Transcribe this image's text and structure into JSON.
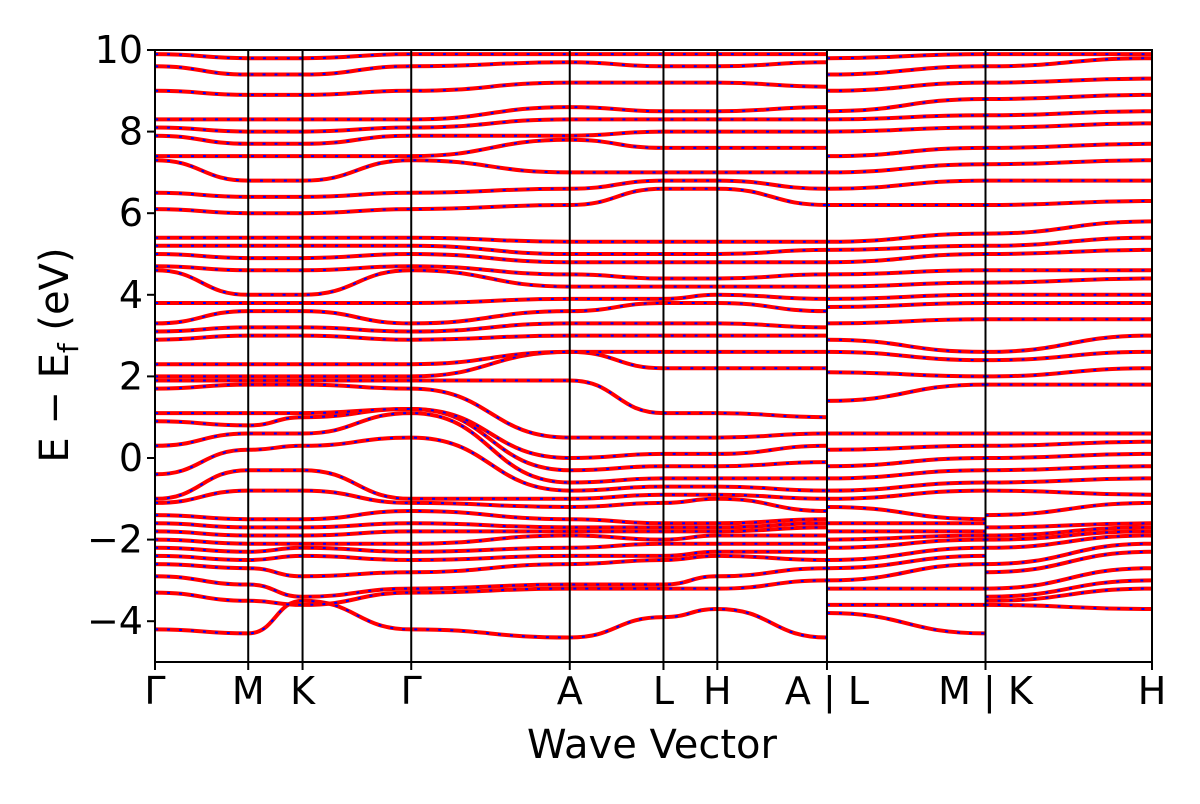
{
  "chart_data": {
    "type": "line",
    "title": "",
    "xlabel": "Wave Vector",
    "ylabel_main": "E − E",
    "ylabel_sub": "f",
    "ylabel_suffix": " (eV)",
    "ylim": [
      -5,
      10
    ],
    "yticks": [
      -4,
      -2,
      0,
      2,
      4,
      6,
      8,
      10
    ],
    "ytick_labels": [
      "−4",
      "−2",
      "0",
      "2",
      "4",
      "6",
      "8",
      "10"
    ],
    "x_path": {
      "segment_breaks": [
        0,
        0.0935,
        0.148,
        0.257,
        0.416,
        0.51,
        0.564,
        0.674,
        0.833,
        1.0
      ],
      "labels": [
        "Γ",
        "M",
        "K",
        "Γ",
        "A",
        "L",
        "H",
        "A | L",
        "M | K",
        "H"
      ]
    },
    "series_colors": {
      "primary": "#ff0000",
      "secondary": "#0000ff"
    },
    "series": [
      {
        "name": "",
        "style": "solid",
        "color": "#ff0000",
        "bands": [
          [
            -4.2,
            -4.3,
            -3.5,
            -4.2,
            -4.4,
            -3.9,
            -3.7,
            -4.4,
            -3.8,
            -4.3,
            -3.6,
            -3.7
          ],
          [
            -3.3,
            -3.5,
            -3.6,
            -3.3,
            -3.2,
            -3.2,
            -3.2,
            -3.0,
            -3.6,
            -3.6,
            -3.5,
            -3.2
          ],
          [
            -2.9,
            -3.1,
            -3.4,
            -3.2,
            -3.1,
            -3.1,
            -2.9,
            -2.7,
            -3.2,
            -3.2,
            -3.4,
            -3.0
          ],
          [
            -2.6,
            -2.7,
            -2.9,
            -2.8,
            -2.6,
            -2.5,
            -2.4,
            -2.5,
            -3.0,
            -2.6,
            -3.2,
            -2.7
          ],
          [
            -2.4,
            -2.5,
            -2.4,
            -2.5,
            -2.4,
            -2.4,
            -2.3,
            -2.3,
            -2.7,
            -2.4,
            -2.8,
            -2.3
          ],
          [
            -2.2,
            -2.3,
            -2.2,
            -2.3,
            -2.2,
            -2.1,
            -2.1,
            -2.1,
            -2.5,
            -2.2,
            -2.6,
            -2.1
          ],
          [
            -2.0,
            -2.1,
            -2.1,
            -2.1,
            -1.9,
            -2.0,
            -1.9,
            -1.9,
            -2.2,
            -2.0,
            -2.2,
            -1.9
          ],
          [
            -1.8,
            -1.9,
            -1.9,
            -1.8,
            -1.8,
            -1.8,
            -1.8,
            -1.7,
            -2.0,
            -1.9,
            -2.0,
            -1.8
          ],
          [
            -1.6,
            -1.7,
            -1.7,
            -1.6,
            -1.7,
            -1.7,
            -1.7,
            -1.6,
            -1.8,
            -1.8,
            -1.9,
            -1.7
          ],
          [
            -1.4,
            -1.5,
            -1.5,
            -1.3,
            -1.5,
            -1.6,
            -1.6,
            -1.5,
            -1.6,
            -1.6,
            -1.7,
            -1.6
          ],
          [
            -1.1,
            -0.8,
            -0.8,
            -1.1,
            -1.2,
            -1.1,
            -1.0,
            -1.3,
            -1.2,
            -1.5,
            -1.4,
            -1.1
          ],
          [
            -1.0,
            -0.3,
            -0.3,
            -1.0,
            -1.0,
            -0.9,
            -0.9,
            -1.0,
            -1.0,
            -0.8,
            -0.8,
            -0.9
          ],
          [
            -0.4,
            0.2,
            0.3,
            0.5,
            -0.8,
            -0.7,
            -0.7,
            -0.8,
            -0.8,
            -0.6,
            -0.6,
            -0.5
          ],
          [
            0.3,
            0.6,
            0.6,
            1.1,
            -0.6,
            -0.5,
            -0.5,
            -0.5,
            -0.5,
            -0.3,
            -0.3,
            -0.2
          ],
          [
            0.9,
            0.8,
            1.0,
            1.2,
            -0.3,
            -0.2,
            -0.2,
            -0.1,
            -0.2,
            0.0,
            0.0,
            0.1
          ],
          [
            1.1,
            1.1,
            1.1,
            1.2,
            0.0,
            0.1,
            0.1,
            0.3,
            0.2,
            0.3,
            0.3,
            0.4
          ],
          [
            1.7,
            1.8,
            1.8,
            1.7,
            0.5,
            0.5,
            0.5,
            0.6,
            0.6,
            0.6,
            0.6,
            0.6
          ],
          [
            1.9,
            1.9,
            1.9,
            1.9,
            1.9,
            1.1,
            1.1,
            1.0,
            1.4,
            1.8,
            1.8,
            1.8
          ],
          [
            2.0,
            2.0,
            2.0,
            2.0,
            2.6,
            2.2,
            2.2,
            2.2,
            2.1,
            2.0,
            2.0,
            2.2
          ],
          [
            2.3,
            2.3,
            2.3,
            2.3,
            2.6,
            2.6,
            2.6,
            2.6,
            2.6,
            2.4,
            2.4,
            2.6
          ],
          [
            2.9,
            3.0,
            3.0,
            2.9,
            3.0,
            3.0,
            3.0,
            3.0,
            2.9,
            2.6,
            2.6,
            3.0
          ],
          [
            3.1,
            3.2,
            3.2,
            3.1,
            3.3,
            3.3,
            3.3,
            3.2,
            3.3,
            3.4,
            3.4,
            3.4
          ],
          [
            3.3,
            3.6,
            3.6,
            3.3,
            3.6,
            3.8,
            3.8,
            3.6,
            3.7,
            3.8,
            3.8,
            3.8
          ],
          [
            3.8,
            3.8,
            3.8,
            3.8,
            3.9,
            3.9,
            4.0,
            3.9,
            3.9,
            4.0,
            4.0,
            4.0
          ],
          [
            4.6,
            4.0,
            4.0,
            4.6,
            4.2,
            4.2,
            4.2,
            4.2,
            4.2,
            4.3,
            4.3,
            4.4
          ],
          [
            4.7,
            4.6,
            4.6,
            4.7,
            4.5,
            4.4,
            4.4,
            4.5,
            4.5,
            4.6,
            4.6,
            4.6
          ],
          [
            5.0,
            4.9,
            4.9,
            5.0,
            4.8,
            4.8,
            4.8,
            4.8,
            4.8,
            5.0,
            5.0,
            5.1
          ],
          [
            5.2,
            5.2,
            5.2,
            5.2,
            5.0,
            5.0,
            5.0,
            5.1,
            5.1,
            5.2,
            5.2,
            5.4
          ],
          [
            5.4,
            5.4,
            5.4,
            5.4,
            5.3,
            5.3,
            5.3,
            5.3,
            5.3,
            5.5,
            5.5,
            5.8
          ],
          [
            6.1,
            6.0,
            6.0,
            6.1,
            6.2,
            6.6,
            6.6,
            6.2,
            6.2,
            6.2,
            6.2,
            6.3
          ],
          [
            6.5,
            6.4,
            6.4,
            6.5,
            6.6,
            6.8,
            6.8,
            6.6,
            6.6,
            6.8,
            6.8,
            6.8
          ],
          [
            7.3,
            6.8,
            6.8,
            7.3,
            7.0,
            7.0,
            7.0,
            7.0,
            7.0,
            7.2,
            7.2,
            7.3
          ],
          [
            7.4,
            7.4,
            7.4,
            7.4,
            7.8,
            7.6,
            7.6,
            7.6,
            7.4,
            7.6,
            7.6,
            7.7
          ],
          [
            7.9,
            7.7,
            7.7,
            7.9,
            7.9,
            8.0,
            8.0,
            8.0,
            8.0,
            8.1,
            8.1,
            8.2
          ],
          [
            8.1,
            8.0,
            8.0,
            8.1,
            8.3,
            8.3,
            8.3,
            8.3,
            8.3,
            8.4,
            8.4,
            8.5
          ],
          [
            8.3,
            8.3,
            8.3,
            8.3,
            8.6,
            8.5,
            8.5,
            8.6,
            8.5,
            8.8,
            8.8,
            8.9
          ],
          [
            9.0,
            8.9,
            8.9,
            9.0,
            9.2,
            9.2,
            9.2,
            9.1,
            9.0,
            9.2,
            9.2,
            9.3
          ],
          [
            9.6,
            9.4,
            9.4,
            9.6,
            9.7,
            9.6,
            9.6,
            9.7,
            9.4,
            9.6,
            9.6,
            9.8
          ],
          [
            9.9,
            9.8,
            9.8,
            9.9,
            9.9,
            9.9,
            9.9,
            9.9,
            9.8,
            9.9,
            9.9,
            9.9
          ]
        ]
      },
      {
        "name": "",
        "style": "dashed",
        "color": "#0000ff",
        "bands": "same as solid series (bands overlap)"
      }
    ],
    "grid": false,
    "legend": "none"
  }
}
